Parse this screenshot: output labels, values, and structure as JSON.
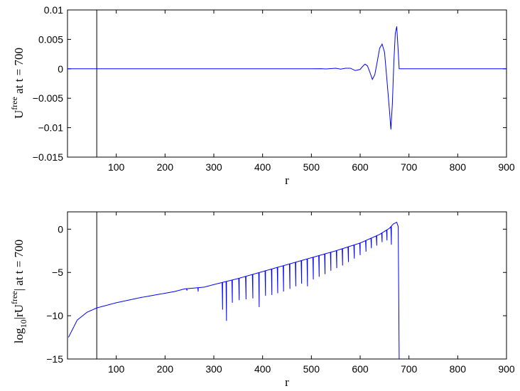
{
  "chart_data": [
    {
      "type": "line",
      "xlabel": "r",
      "ylabel": {
        "base": "U",
        "sup": "free",
        "rest": " at t = 700"
      },
      "xlim": [
        0,
        900
      ],
      "ylim": [
        -0.015,
        0.01
      ],
      "xticks": [
        "100",
        "200",
        "300",
        "400",
        "500",
        "600",
        "700",
        "800",
        "900"
      ],
      "yticks": [
        "−0.015",
        "−0.01",
        "−0.005",
        "0",
        "0.005",
        "0.01"
      ],
      "vline_x": 60,
      "line_color": "#0000ff",
      "series": [
        {
          "x": [
            0,
            500,
            520,
            530,
            540,
            550,
            560,
            570,
            580,
            590,
            600,
            605,
            610,
            615,
            620,
            625,
            630,
            635,
            640,
            645,
            650,
            655,
            660,
            663,
            666,
            669,
            672,
            675,
            678,
            680,
            700,
            900
          ],
          "y": [
            0,
            0,
            2e-05,
            -3e-05,
            4e-05,
            0.0001,
            -5e-05,
            0.0001,
            0.0001,
            -0.0003,
            -0.0001,
            0.0004,
            0.0008,
            0.0005,
            -0.0006,
            -0.0018,
            -0.001,
            0.0012,
            0.0035,
            0.0042,
            0.0028,
            -0.002,
            -0.007,
            -0.0103,
            -0.006,
            0.001,
            0.006,
            0.0072,
            0.003,
            0,
            0,
            0
          ]
        }
      ]
    },
    {
      "type": "line",
      "xlabel": "r",
      "ylabel": {
        "pre": "log",
        "sub": "10",
        "mid": "|rU",
        "sup": "free",
        "rest": "| at t = 700"
      },
      "xlim": [
        0,
        900
      ],
      "ylim": [
        -15,
        2
      ],
      "xticks": [
        "100",
        "200",
        "300",
        "400",
        "500",
        "600",
        "700",
        "800",
        "900"
      ],
      "yticks": [
        "−15",
        "−10",
        "−5",
        "0"
      ],
      "vline_x": 60,
      "line_color": "#0000ff",
      "envelope": {
        "x": [
          2,
          20,
          40,
          60,
          100,
          150,
          200,
          220,
          240,
          260,
          280,
          300,
          350,
          400,
          450,
          500,
          550,
          600,
          640,
          660,
          668,
          675,
          678
        ],
        "y": [
          -12.5,
          -10.5,
          -9.6,
          -9.1,
          -8.5,
          -7.9,
          -7.4,
          -7.2,
          -6.9,
          -6.8,
          -6.7,
          -6.4,
          -5.7,
          -4.9,
          -4.1,
          -3.3,
          -2.5,
          -1.6,
          -0.6,
          0.1,
          0.6,
          0.8,
          0.3
        ]
      },
      "dips": [
        {
          "x": 245,
          "depth": -7.1
        },
        {
          "x": 268,
          "depth": -7.2
        },
        {
          "x": 318,
          "depth": -9.3
        },
        {
          "x": 326,
          "depth": -10.6
        },
        {
          "x": 338,
          "depth": -8.5
        },
        {
          "x": 352,
          "depth": -8.2
        },
        {
          "x": 366,
          "depth": -8.1
        },
        {
          "x": 380,
          "depth": -8.0
        },
        {
          "x": 393,
          "depth": -9.0
        },
        {
          "x": 406,
          "depth": -7.7
        },
        {
          "x": 419,
          "depth": -7.6
        },
        {
          "x": 431,
          "depth": -7.4
        },
        {
          "x": 443,
          "depth": -7.2
        },
        {
          "x": 456,
          "depth": -6.9
        },
        {
          "x": 468,
          "depth": -6.6
        },
        {
          "x": 480,
          "depth": -6.3
        },
        {
          "x": 492,
          "depth": -6.6
        },
        {
          "x": 504,
          "depth": -5.8
        },
        {
          "x": 516,
          "depth": -5.5
        },
        {
          "x": 528,
          "depth": -5.2
        },
        {
          "x": 540,
          "depth": -4.8
        },
        {
          "x": 552,
          "depth": -4.5
        },
        {
          "x": 564,
          "depth": -4.2
        },
        {
          "x": 576,
          "depth": -3.8
        },
        {
          "x": 588,
          "depth": -3.4
        },
        {
          "x": 600,
          "depth": -3.0
        },
        {
          "x": 612,
          "depth": -2.6
        },
        {
          "x": 623,
          "depth": -2.2
        },
        {
          "x": 634,
          "depth": -1.9
        },
        {
          "x": 645,
          "depth": -1.5
        },
        {
          "x": 655,
          "depth": -1.3
        },
        {
          "x": 664,
          "depth": -1.8
        }
      ],
      "drop_x": 680,
      "drop_y": -15
    }
  ]
}
